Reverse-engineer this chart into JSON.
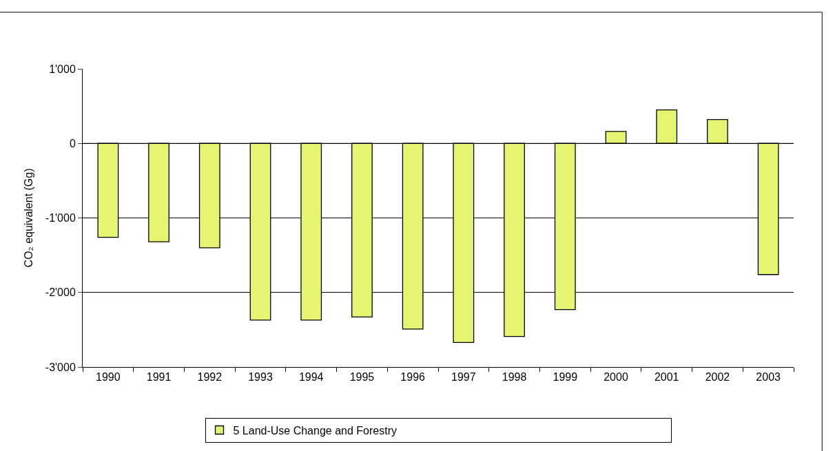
{
  "chart_data": {
    "type": "bar",
    "ylabel": "CO₂ equivalent (Gg)",
    "categories": [
      "1990",
      "1991",
      "1992",
      "1993",
      "1994",
      "1995",
      "1996",
      "1997",
      "1998",
      "1999",
      "2000",
      "2001",
      "2002",
      "2003"
    ],
    "series": [
      {
        "name": "5 Land-Use Change and Forestry",
        "color": "#e6f571",
        "values": [
          -1260,
          -1320,
          -1400,
          -2370,
          -2370,
          -2330,
          -2490,
          -2670,
          -2590,
          -2230,
          160,
          450,
          320,
          -1760
        ]
      }
    ],
    "ylim": [
      -3000,
      1000
    ],
    "yticks": [
      {
        "value": -3000,
        "label": "-3'000"
      },
      {
        "value": -2000,
        "label": "-2'000"
      },
      {
        "value": -1000,
        "label": "-1'000"
      },
      0,
      {
        "value": 1000,
        "label": "1'000"
      }
    ],
    "grid": "y",
    "legend": "bottom"
  }
}
